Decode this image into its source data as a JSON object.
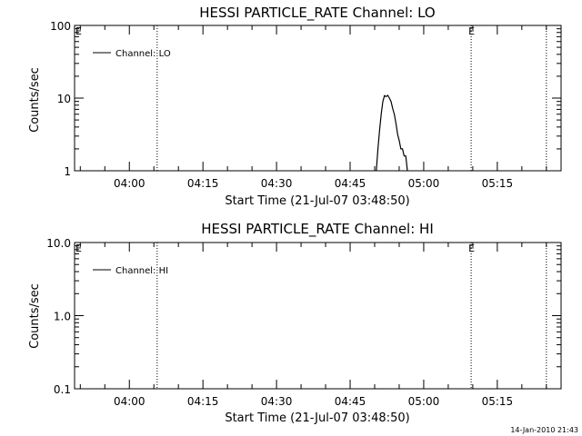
{
  "chart_data": [
    {
      "type": "line",
      "title": "HESSI PARTICLE_RATE Channel: LO",
      "xlabel": "Start Time (21-Jul-07 03:48:50)",
      "ylabel": "Counts/sec",
      "yscale": "log",
      "ylim": [
        1,
        100
      ],
      "yticks": [
        1,
        10,
        100
      ],
      "ytick_labels": [
        "1",
        "10",
        "100"
      ],
      "xlim": [
        "03:48:50",
        "05:28:00"
      ],
      "xticks": [
        "04:00",
        "04:15",
        "04:30",
        "04:45",
        "05:00",
        "05:15"
      ],
      "legend": {
        "label": "Channel: LO",
        "placement": "top-left"
      },
      "markers": [
        {
          "time": "04:05:40",
          "label": ""
        },
        {
          "time": "05:09:40",
          "label": "E"
        },
        {
          "time": "05:25:00",
          "label": ""
        }
      ],
      "edge_label": "E",
      "series": [
        {
          "name": "Channel: LO",
          "x": [
            "04:50:20",
            "04:50:40",
            "04:51:00",
            "04:51:20",
            "04:51:40",
            "04:52:00",
            "04:52:20",
            "04:52:40",
            "04:53:00",
            "04:53:20",
            "04:53:40",
            "04:54:00",
            "04:54:20",
            "04:54:40",
            "04:55:00",
            "04:55:20",
            "04:55:40",
            "04:56:00",
            "04:56:20",
            "04:56:40"
          ],
          "y": [
            1.0,
            2.0,
            3.6,
            6.0,
            9.0,
            10.8,
            10.5,
            10.9,
            10.0,
            9.0,
            7.2,
            6.0,
            4.5,
            3.2,
            2.6,
            2.0,
            2.0,
            1.6,
            1.6,
            1.0
          ]
        }
      ]
    },
    {
      "type": "line",
      "title": "HESSI PARTICLE_RATE Channel: HI",
      "xlabel": "Start Time (21-Jul-07 03:48:50)",
      "ylabel": "Counts/sec",
      "yscale": "log",
      "ylim": [
        0.1,
        10
      ],
      "yticks": [
        0.1,
        1,
        10
      ],
      "ytick_labels": [
        "0.1",
        "1.0",
        "10.0"
      ],
      "xlim": [
        "03:48:50",
        "05:28:00"
      ],
      "xticks": [
        "04:00",
        "04:15",
        "04:30",
        "04:45",
        "05:00",
        "05:15"
      ],
      "legend": {
        "label": "Channel: HI",
        "placement": "top-left"
      },
      "markers": [
        {
          "time": "04:05:40",
          "label": ""
        },
        {
          "time": "05:09:40",
          "label": "E"
        },
        {
          "time": "05:25:00",
          "label": ""
        }
      ],
      "edge_label": "E",
      "series": [
        {
          "name": "Channel: HI",
          "x": [],
          "y": []
        }
      ]
    }
  ],
  "footer": {
    "timestamp": "14-Jan-2010 21:43"
  }
}
